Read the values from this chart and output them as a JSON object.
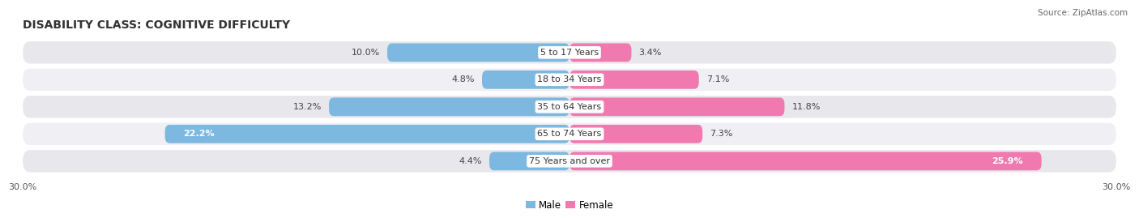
{
  "title": "DISABILITY CLASS: COGNITIVE DIFFICULTY",
  "source": "Source: ZipAtlas.com",
  "categories": [
    "5 to 17 Years",
    "18 to 34 Years",
    "35 to 64 Years",
    "65 to 74 Years",
    "75 Years and over"
  ],
  "male_values": [
    10.0,
    4.8,
    13.2,
    22.2,
    4.4
  ],
  "female_values": [
    3.4,
    7.1,
    11.8,
    7.3,
    25.9
  ],
  "male_color": "#7db8e0",
  "female_color": "#f07ab0",
  "male_color_dark": "#5a9ecf",
  "female_color_dark": "#e05898",
  "row_bg_color": "#e8e8ec",
  "row_bg_color2": "#f0f0f4",
  "xlim": 30.0,
  "male_label": "Male",
  "female_label": "Female",
  "title_fontsize": 10,
  "label_fontsize": 8,
  "tick_fontsize": 8,
  "source_fontsize": 7.5
}
